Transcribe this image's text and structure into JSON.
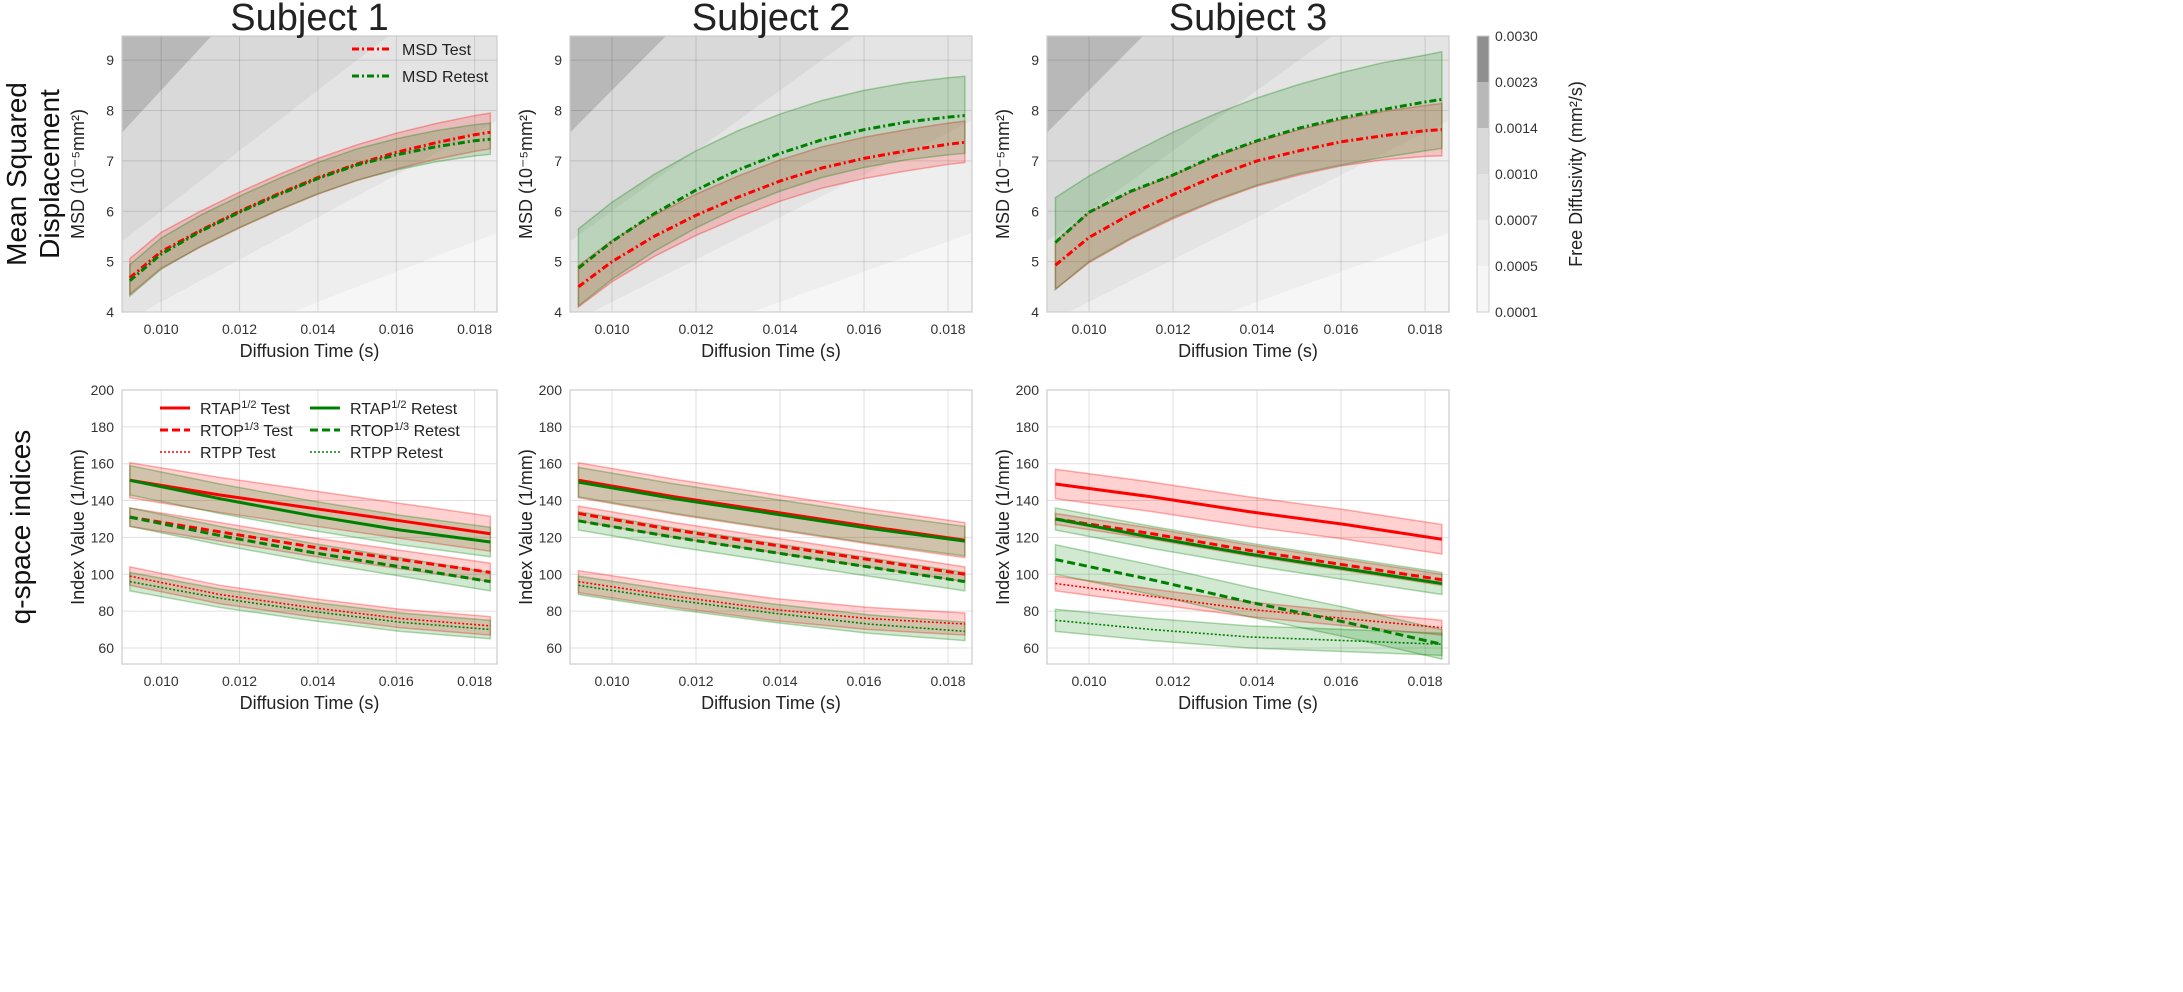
{
  "figure": {
    "row_labels": [
      [
        "Mean Squared",
        "Displacement"
      ],
      [
        "q-space indices"
      ]
    ],
    "colorbar": {
      "label": "Free Diffusivity (mm²/s)",
      "ticks": [
        "0.0001",
        "0.0005",
        "0.0007",
        "0.0010",
        "0.0014",
        "0.0023",
        "0.0030"
      ],
      "bands": [
        {
          "from": 0.0001,
          "to": 0.0005,
          "color": "#f6f6f6"
        },
        {
          "from": 0.0005,
          "to": 0.0007,
          "color": "#eeeeee"
        },
        {
          "from": 0.0007,
          "to": 0.001,
          "color": "#e4e4e4"
        },
        {
          "from": 0.001,
          "to": 0.0014,
          "color": "#d9d9d9"
        },
        {
          "from": 0.0014,
          "to": 0.0023,
          "color": "#b8b8b8"
        },
        {
          "from": 0.0023,
          "to": 0.003,
          "color": "#8f8f8f"
        }
      ]
    },
    "colors": {
      "test": "#ff0000",
      "retest": "#008000"
    }
  },
  "chart_data": [
    {
      "type": "line",
      "row": "msd",
      "title": "Subject 1",
      "xlabel": "Diffusion Time (s)",
      "ylabel": "MSD (10⁻⁵mm²)",
      "xlim": [
        0.009,
        0.01857
      ],
      "ylim": [
        4,
        9.48
      ],
      "xticks": [
        "0.010",
        "0.012",
        "0.014",
        "0.016",
        "0.018"
      ],
      "yticks": [
        "4",
        "5",
        "6",
        "7",
        "8",
        "9"
      ],
      "grid": true,
      "legend": "top-right",
      "x": [
        0.0092,
        0.01,
        0.011,
        0.012,
        0.013,
        0.014,
        0.015,
        0.016,
        0.017,
        0.018,
        0.0184
      ],
      "series": [
        {
          "name": "MSD Test",
          "color": "#ff0000",
          "style": "dashdot",
          "y": [
            4.68,
            5.2,
            5.62,
            6.0,
            6.35,
            6.67,
            6.94,
            7.17,
            7.36,
            7.52,
            7.57
          ],
          "lower": [
            4.35,
            4.87,
            5.29,
            5.67,
            6.02,
            6.34,
            6.61,
            6.84,
            7.03,
            7.19,
            7.24
          ],
          "upper": [
            5.06,
            5.58,
            6.0,
            6.38,
            6.73,
            7.05,
            7.32,
            7.55,
            7.74,
            7.9,
            7.95
          ]
        },
        {
          "name": "MSD Retest",
          "color": "#008000",
          "style": "dashdot",
          "y": [
            4.62,
            5.15,
            5.6,
            5.98,
            6.33,
            6.65,
            6.92,
            7.12,
            7.28,
            7.4,
            7.43
          ],
          "lower": [
            4.32,
            4.85,
            5.3,
            5.68,
            6.03,
            6.35,
            6.62,
            6.82,
            6.98,
            7.1,
            7.13
          ],
          "upper": [
            4.94,
            5.47,
            5.92,
            6.3,
            6.65,
            6.97,
            7.24,
            7.44,
            7.6,
            7.72,
            7.75
          ]
        }
      ]
    },
    {
      "type": "line",
      "row": "msd",
      "title": "Subject 2",
      "xlabel": "Diffusion Time (s)",
      "ylabel": "MSD (10⁻⁵mm²)",
      "xlim": [
        0.009,
        0.01857
      ],
      "ylim": [
        4,
        9.48
      ],
      "xticks": [
        "0.010",
        "0.012",
        "0.014",
        "0.016",
        "0.018"
      ],
      "yticks": [
        "4",
        "5",
        "6",
        "7",
        "8",
        "9"
      ],
      "grid": true,
      "x": [
        0.0092,
        0.01,
        0.011,
        0.012,
        0.013,
        0.014,
        0.015,
        0.016,
        0.017,
        0.018,
        0.0184
      ],
      "series": [
        {
          "name": "MSD Test",
          "color": "#ff0000",
          "style": "dashdot",
          "y": [
            4.5,
            5.0,
            5.5,
            5.92,
            6.28,
            6.6,
            6.86,
            7.05,
            7.2,
            7.33,
            7.37
          ],
          "lower": [
            4.1,
            4.6,
            5.1,
            5.52,
            5.88,
            6.2,
            6.46,
            6.65,
            6.8,
            6.93,
            6.97
          ],
          "upper": [
            4.92,
            5.42,
            5.92,
            6.34,
            6.7,
            7.02,
            7.28,
            7.47,
            7.62,
            7.75,
            7.79
          ]
        },
        {
          "name": "MSD Retest",
          "color": "#008000",
          "style": "dashdot",
          "y": [
            4.87,
            5.4,
            5.95,
            6.42,
            6.82,
            7.15,
            7.42,
            7.62,
            7.77,
            7.87,
            7.9
          ],
          "lower": [
            4.12,
            4.65,
            5.2,
            5.67,
            6.07,
            6.4,
            6.67,
            6.87,
            7.02,
            7.12,
            7.15
          ],
          "upper": [
            5.65,
            6.18,
            6.73,
            7.2,
            7.6,
            7.93,
            8.2,
            8.4,
            8.55,
            8.65,
            8.68
          ]
        }
      ]
    },
    {
      "type": "line",
      "row": "msd",
      "title": "Subject 3",
      "xlabel": "Diffusion Time (s)",
      "ylabel": "MSD (10⁻⁵mm²)",
      "xlim": [
        0.009,
        0.01857
      ],
      "ylim": [
        4,
        9.48
      ],
      "xticks": [
        "0.010",
        "0.012",
        "0.014",
        "0.016",
        "0.018"
      ],
      "yticks": [
        "4",
        "5",
        "6",
        "7",
        "8",
        "9"
      ],
      "grid": true,
      "x": [
        0.0092,
        0.01,
        0.011,
        0.012,
        0.013,
        0.014,
        0.015,
        0.016,
        0.017,
        0.018,
        0.0184
      ],
      "series": [
        {
          "name": "MSD Test",
          "color": "#ff0000",
          "style": "dashdot",
          "y": [
            4.93,
            5.48,
            5.95,
            6.33,
            6.7,
            7.0,
            7.2,
            7.38,
            7.5,
            7.6,
            7.62
          ],
          "lower": [
            4.45,
            4.98,
            5.45,
            5.85,
            6.2,
            6.5,
            6.72,
            6.9,
            7.02,
            7.09,
            7.1
          ],
          "upper": [
            5.4,
            5.98,
            6.38,
            6.72,
            7.08,
            7.38,
            7.62,
            7.82,
            7.98,
            8.1,
            8.14
          ]
        },
        {
          "name": "MSD Retest",
          "color": "#008000",
          "style": "dashdot",
          "y": [
            5.38,
            5.98,
            6.4,
            6.72,
            7.1,
            7.4,
            7.65,
            7.85,
            8.02,
            8.17,
            8.22
          ],
          "lower": [
            4.45,
            5.0,
            5.47,
            5.88,
            6.22,
            6.52,
            6.75,
            6.92,
            7.07,
            7.2,
            7.25
          ],
          "upper": [
            6.27,
            6.7,
            7.15,
            7.57,
            7.93,
            8.25,
            8.52,
            8.75,
            8.95,
            9.1,
            9.17
          ]
        }
      ]
    },
    {
      "type": "line",
      "row": "q",
      "title": "",
      "xlabel": "Diffusion Time (s)",
      "ylabel": "Index Value (1/mm)",
      "xlim": [
        0.009,
        0.01857
      ],
      "ylim": [
        51.3,
        200
      ],
      "xticks": [
        "0.010",
        "0.012",
        "0.014",
        "0.016",
        "0.018"
      ],
      "yticks": [
        "60",
        "80",
        "100",
        "120",
        "140",
        "160",
        "180",
        "200"
      ],
      "grid": true,
      "legend": "top",
      "x": [
        0.0092,
        0.0115,
        0.0138,
        0.0161,
        0.0184
      ],
      "series": [
        {
          "name": "RTAP^{1/2} Test",
          "color": "#ff0000",
          "style": "solid",
          "y": [
            151,
            143,
            136,
            129,
            122
          ],
          "spread": 9.5
        },
        {
          "name": "RTOP^{1/3} Test",
          "color": "#ff0000",
          "style": "dashed",
          "y": [
            131,
            123,
            115,
            108,
            101
          ],
          "spread": 5
        },
        {
          "name": "RTPP Test",
          "color": "#ff0000",
          "style": "dotted",
          "y": [
            99,
            89,
            82,
            76,
            72
          ],
          "spread": 5
        },
        {
          "name": "RTAP^{1/2} Retest",
          "color": "#008000",
          "style": "solid",
          "y": [
            151,
            141,
            132,
            124,
            117.5
          ],
          "spread": 8
        },
        {
          "name": "RTOP^{1/3} Retest",
          "color": "#008000",
          "style": "dashed",
          "y": [
            131,
            121,
            112,
            104,
            96
          ],
          "spread": 5
        },
        {
          "name": "RTPP Retest",
          "color": "#008000",
          "style": "dotted",
          "y": [
            96,
            87,
            80,
            74,
            70
          ],
          "spread": 5
        }
      ]
    },
    {
      "type": "line",
      "row": "q",
      "title": "",
      "xlabel": "Diffusion Time (s)",
      "ylabel": "Index Value (1/mm)",
      "xlim": [
        0.009,
        0.01857
      ],
      "ylim": [
        51.3,
        200
      ],
      "xticks": [
        "0.010",
        "0.012",
        "0.014",
        "0.016",
        "0.018"
      ],
      "yticks": [
        "60",
        "80",
        "100",
        "120",
        "140",
        "160",
        "180",
        "200"
      ],
      "grid": true,
      "x": [
        0.0092,
        0.0115,
        0.0138,
        0.0161,
        0.0184
      ],
      "series": [
        {
          "name": "RTAP^{1/2} Test",
          "color": "#ff0000",
          "style": "solid",
          "y": [
            151,
            142,
            134,
            126,
            118.5
          ],
          "spread": 9.5
        },
        {
          "name": "RTOP^{1/3} Test",
          "color": "#ff0000",
          "style": "dashed",
          "y": [
            133,
            124,
            116,
            108,
            100
          ],
          "spread": 4
        },
        {
          "name": "RTPP Test",
          "color": "#ff0000",
          "style": "dotted",
          "y": [
            96,
            88,
            81,
            76,
            73
          ],
          "spread": 6
        },
        {
          "name": "RTAP^{1/2} Retest",
          "color": "#008000",
          "style": "solid",
          "y": [
            150,
            141,
            133,
            125,
            118
          ],
          "spread": 8
        },
        {
          "name": "RTOP^{1/3} Retest",
          "color": "#008000",
          "style": "dashed",
          "y": [
            129,
            120,
            112,
            104,
            96
          ],
          "spread": 5
        },
        {
          "name": "RTPP Retest",
          "color": "#008000",
          "style": "dotted",
          "y": [
            94,
            86,
            79,
            73,
            69
          ],
          "spread": 5
        }
      ]
    },
    {
      "type": "line",
      "row": "q",
      "title": "",
      "xlabel": "Diffusion Time (s)",
      "ylabel": "Index Value (1/mm)",
      "xlim": [
        0.009,
        0.01857
      ],
      "ylim": [
        51.3,
        200
      ],
      "xticks": [
        "0.010",
        "0.012",
        "0.014",
        "0.016",
        "0.018"
      ],
      "yticks": [
        "60",
        "80",
        "100",
        "120",
        "140",
        "160",
        "180",
        "200"
      ],
      "grid": true,
      "x": [
        0.0092,
        0.0115,
        0.0138,
        0.0161,
        0.0184
      ],
      "series": [
        {
          "name": "RTAP^{1/2} Test",
          "color": "#ff0000",
          "style": "solid",
          "y": [
            149,
            142,
            134,
            127,
            119
          ],
          "spread": 8
        },
        {
          "name": "RTOP^{1/3} Test",
          "color": "#ff0000",
          "style": "dashed",
          "y": [
            130,
            122,
            113,
            105,
            97
          ],
          "spread": 3
        },
        {
          "name": "RTPP Test",
          "color": "#ff0000",
          "style": "dotted",
          "y": [
            95,
            88,
            81,
            76,
            71
          ],
          "spread": 4
        },
        {
          "name": "RTAP^{1/2} Retest",
          "color": "#008000",
          "style": "solid",
          "y": [
            130,
            120,
            111,
            103,
            95
          ],
          "spread": 6
        },
        {
          "name": "RTOP^{1/3} Retest",
          "color": "#008000",
          "style": "dashed",
          "y": [
            108,
            97,
            85,
            74,
            62
          ],
          "spread": 8
        },
        {
          "name": "RTPP Retest",
          "color": "#008000",
          "style": "dotted",
          "y": [
            75,
            70,
            66,
            64,
            62
          ],
          "spread": 6
        }
      ]
    }
  ]
}
